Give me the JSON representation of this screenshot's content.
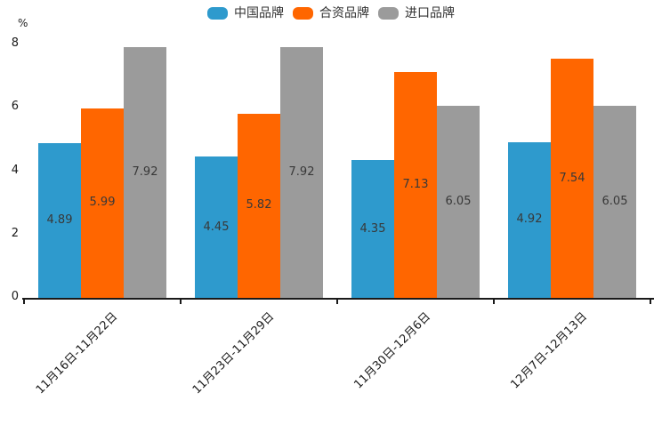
{
  "chart_data": {
    "type": "bar",
    "title": "",
    "xlabel": "",
    "ylabel": "%",
    "categories": [
      "11月16日-11月22日",
      "11月23日-11月29日",
      "11月30日-12月6日",
      "12月7日-12月13日"
    ],
    "series": [
      {
        "name": "中国品牌",
        "color": "#2E9ACD",
        "values": [
          4.89,
          4.45,
          4.35,
          4.92
        ]
      },
      {
        "name": "合资品牌",
        "color": "#FF6600",
        "values": [
          5.99,
          5.82,
          7.13,
          7.54
        ]
      },
      {
        "name": "进口品牌",
        "color": "#9B9B9B",
        "values": [
          7.92,
          7.92,
          6.05,
          6.05
        ]
      }
    ],
    "ylim": [
      0,
      8
    ],
    "yticks": [
      0,
      2,
      4,
      6,
      8
    ],
    "grid": false,
    "legend_position": "top-center",
    "value_labels": "centered-in-bar",
    "value_label_color": "#383838",
    "axis_color": "#1A1A1A",
    "background_color": "#FFFFFF",
    "x_label_rotation_deg": 45
  }
}
